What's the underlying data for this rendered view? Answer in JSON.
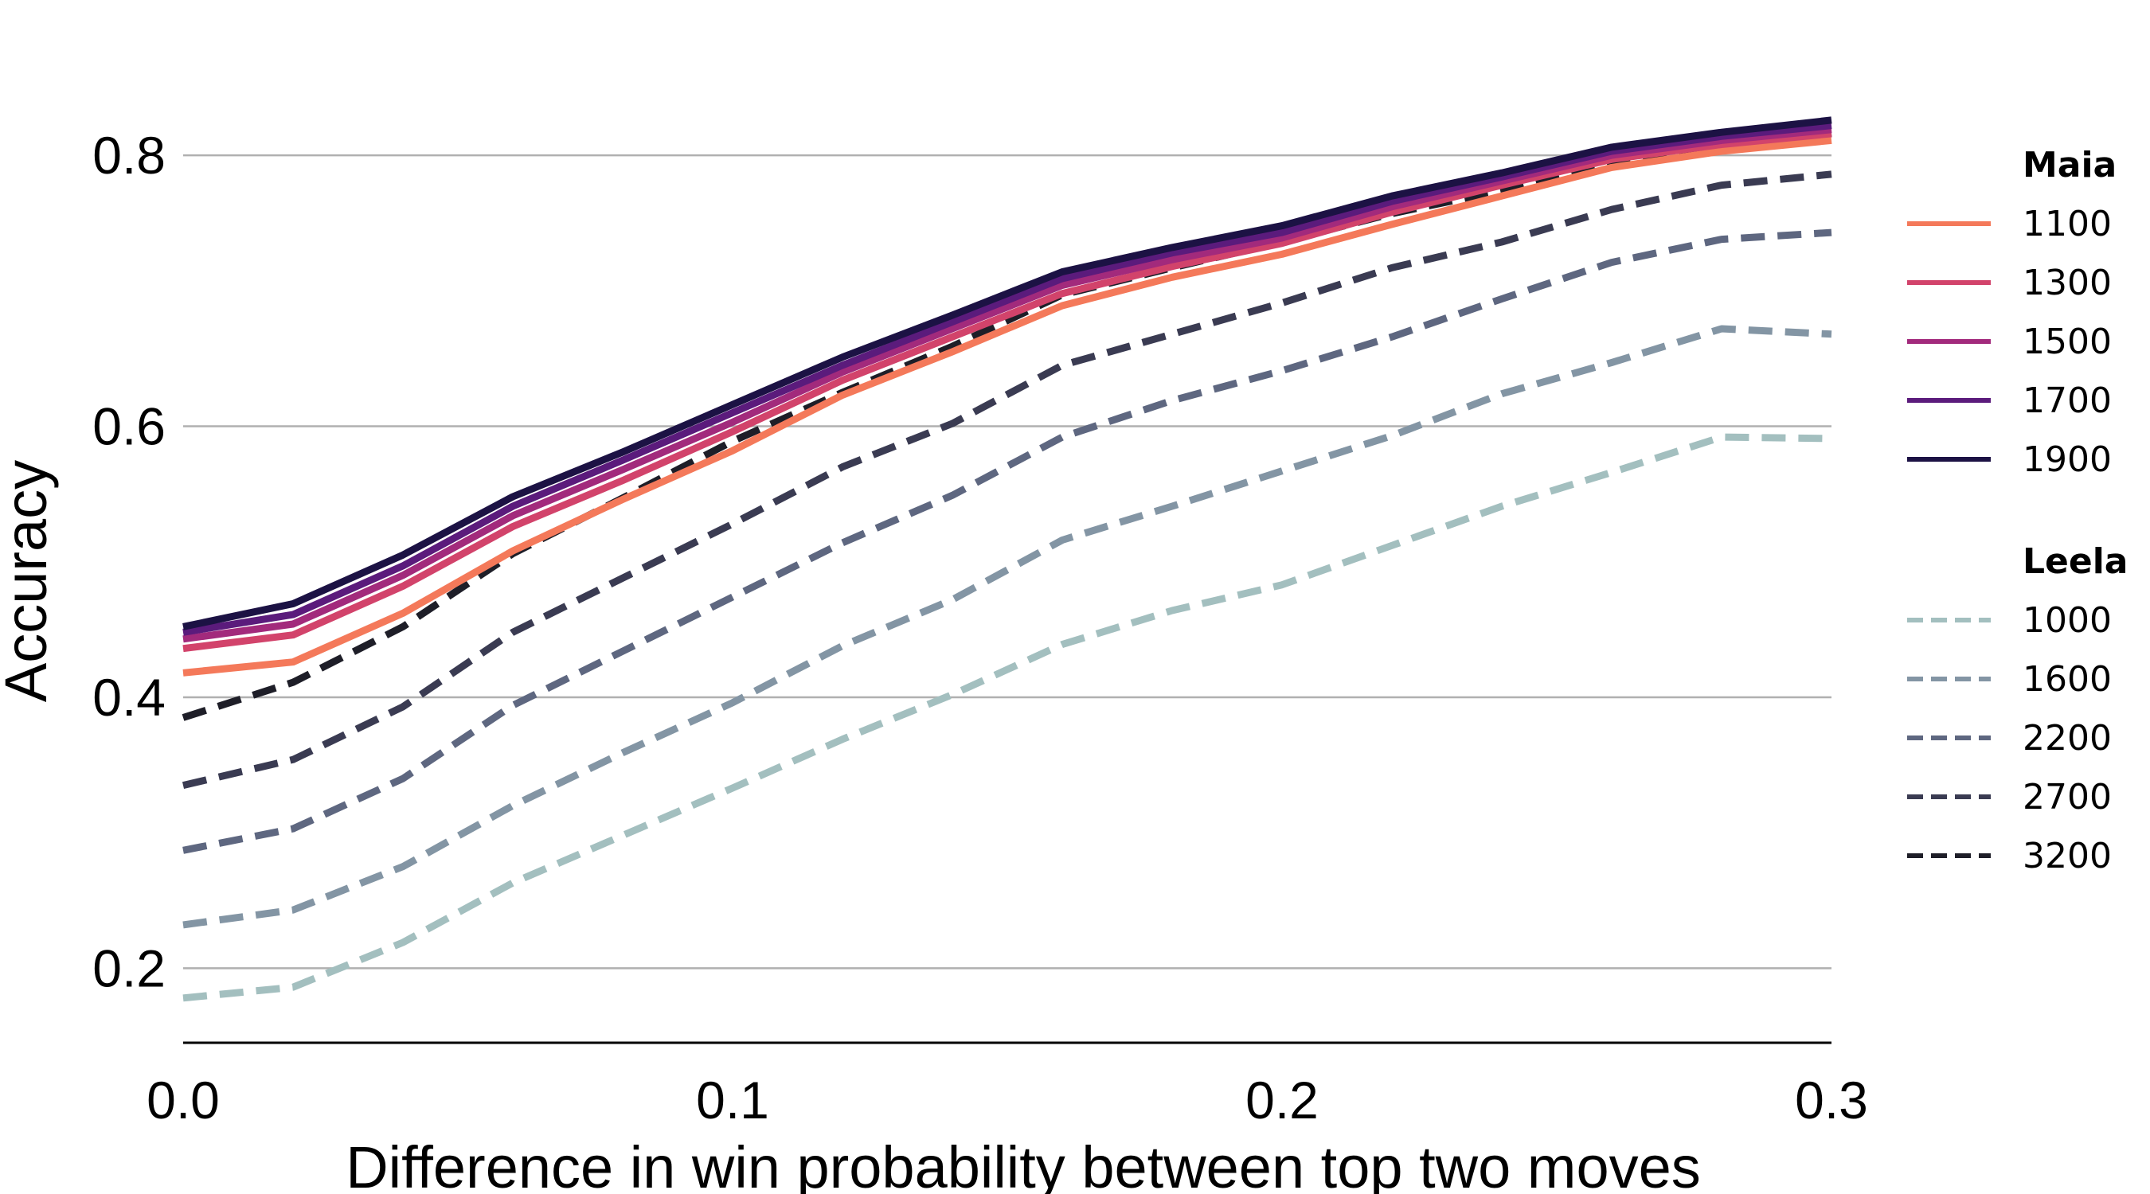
{
  "chart_data": {
    "type": "line",
    "xlabel": "Difference in win probability between top two moves",
    "ylabel": "Accuracy",
    "xlim": [
      0.0,
      0.3
    ],
    "ylim": [
      0.145,
      0.85
    ],
    "xticks": [
      0.0,
      0.1,
      0.2,
      0.3
    ],
    "xtick_labels": [
      "0.0",
      "0.1",
      "0.2",
      "0.3"
    ],
    "yticks": [
      0.2,
      0.4,
      0.6,
      0.8
    ],
    "ytick_labels": [
      "0.2",
      "0.4",
      "0.6",
      "0.8"
    ],
    "grid": "horizontal",
    "legend_position": "right",
    "x": [
      0.0,
      0.02,
      0.04,
      0.06,
      0.08,
      0.1,
      0.12,
      0.14,
      0.16,
      0.18,
      0.2,
      0.22,
      0.24,
      0.26,
      0.28,
      0.3
    ],
    "groups": [
      {
        "title": "Maia",
        "style": "solid",
        "series": [
          {
            "name": "1100",
            "color": "#f4795a",
            "values": [
              0.418,
              0.426,
              0.462,
              0.508,
              0.546,
              0.582,
              0.623,
              0.655,
              0.689,
              0.71,
              0.727,
              0.749,
              0.77,
              0.791,
              0.803,
              0.811
            ]
          },
          {
            "name": "1300",
            "color": "#d2436b",
            "values": [
              0.436,
              0.446,
              0.482,
              0.526,
              0.56,
              0.596,
              0.634,
              0.666,
              0.698,
              0.718,
              0.735,
              0.758,
              0.778,
              0.797,
              0.808,
              0.816
            ]
          },
          {
            "name": "1500",
            "color": "#a22a7c",
            "values": [
              0.443,
              0.454,
              0.49,
              0.534,
              0.568,
              0.603,
              0.64,
              0.672,
              0.704,
              0.723,
              0.739,
              0.762,
              0.781,
              0.8,
              0.811,
              0.819
            ]
          },
          {
            "name": "1700",
            "color": "#5b1b7c",
            "values": [
              0.448,
              0.461,
              0.497,
              0.541,
              0.575,
              0.61,
              0.645,
              0.677,
              0.709,
              0.728,
              0.743,
              0.766,
              0.784,
              0.803,
              0.814,
              0.822
            ]
          },
          {
            "name": "1900",
            "color": "#1c1244",
            "values": [
              0.452,
              0.469,
              0.505,
              0.548,
              0.581,
              0.616,
              0.651,
              0.682,
              0.714,
              0.732,
              0.748,
              0.77,
              0.787,
              0.806,
              0.817,
              0.826
            ]
          }
        ]
      },
      {
        "title": "Leela",
        "style": "dashed",
        "series": [
          {
            "name": "1000",
            "color": "#a3bfbf",
            "values": [
              0.178,
              0.186,
              0.219,
              0.263,
              0.298,
              0.333,
              0.369,
              0.402,
              0.439,
              0.464,
              0.483,
              0.512,
              0.541,
              0.566,
              0.592,
              0.591
            ]
          },
          {
            "name": "1600",
            "color": "#8395a4",
            "values": [
              0.232,
              0.243,
              0.275,
              0.32,
              0.359,
              0.396,
              0.438,
              0.472,
              0.516,
              0.541,
              0.567,
              0.593,
              0.624,
              0.647,
              0.672,
              0.668
            ]
          },
          {
            "name": "2200",
            "color": "#5e6780",
            "values": [
              0.287,
              0.303,
              0.34,
              0.394,
              0.434,
              0.474,
              0.514,
              0.549,
              0.592,
              0.619,
              0.641,
              0.666,
              0.694,
              0.721,
              0.738,
              0.743
            ]
          },
          {
            "name": "2700",
            "color": "#3a3b52",
            "values": [
              0.335,
              0.354,
              0.393,
              0.448,
              0.488,
              0.528,
              0.57,
              0.602,
              0.645,
              0.668,
              0.691,
              0.717,
              0.736,
              0.76,
              0.778,
              0.786
            ]
          },
          {
            "name": "3200",
            "color": "#1e1e28",
            "values": [
              0.385,
              0.411,
              0.452,
              0.506,
              0.547,
              0.589,
              0.625,
              0.659,
              0.697,
              0.717,
              0.736,
              0.757,
              0.774,
              0.796,
              0.807,
              0.816
            ]
          }
        ]
      }
    ]
  }
}
